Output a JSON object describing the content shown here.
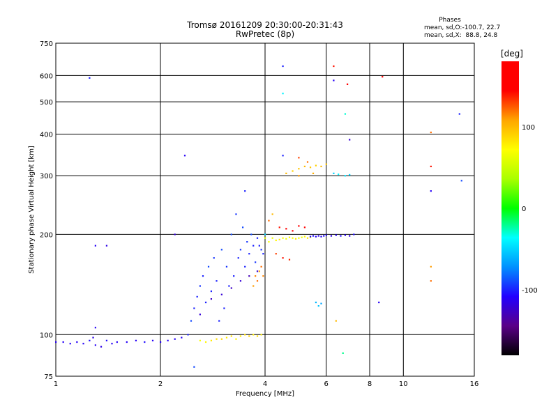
{
  "chart_data": {
    "type": "scatter",
    "title": "Tromsø 20161209 20:30:00-20:31:43",
    "subtitle": "RwPretec (8p)",
    "xlabel": "Frequency [MHz]",
    "ylabel": "Stationary phase Virtual Height [km]",
    "x_scale": "log",
    "y_scale": "log",
    "xlim": [
      1,
      16
    ],
    "ylim": [
      75,
      750
    ],
    "grid": true,
    "x_ticks": [
      1,
      2,
      4,
      6,
      8,
      10,
      16
    ],
    "x_tick_labels": [
      "1",
      "2",
      "4",
      "6",
      "8",
      "10",
      "16"
    ],
    "y_ticks": [
      75,
      100,
      200,
      300,
      400,
      500,
      600,
      750
    ],
    "y_tick_labels": [
      "75",
      "100",
      "200",
      "300",
      "400",
      "500",
      "600",
      "750"
    ],
    "phases_box": {
      "title": "Phases",
      "line1": "mean, sd,O:-100.7, 22.7",
      "line2": "mean, sd,X:  88.8, 24.8"
    },
    "colorbar": {
      "label": "[deg]",
      "range": [
        -180,
        180
      ],
      "ticks": [
        100,
        0,
        -100
      ],
      "tick_labels": [
        "100",
        "0",
        "-100"
      ],
      "colors": [
        "#000000",
        "#5a0088",
        "#2200ff",
        "#0090ff",
        "#00ffff",
        "#00ff00",
        "#aaff00",
        "#ffff00",
        "#ffa500",
        "#ff0000",
        "#ff0000"
      ]
    },
    "series": [
      {
        "points": [
          [
            1.0,
            95,
            -110
          ],
          [
            1.05,
            95,
            -110
          ],
          [
            1.1,
            94,
            -110
          ],
          [
            1.15,
            95,
            -110
          ],
          [
            1.2,
            94,
            -110
          ],
          [
            1.25,
            96,
            -105
          ],
          [
            1.28,
            98,
            -115
          ],
          [
            1.3,
            105,
            -110
          ],
          [
            1.3,
            93,
            -110
          ],
          [
            1.35,
            92,
            -115
          ],
          [
            1.4,
            96,
            -105
          ],
          [
            1.45,
            94,
            -110
          ],
          [
            1.5,
            95,
            -110
          ],
          [
            1.6,
            95,
            -110
          ],
          [
            1.7,
            96,
            -110
          ],
          [
            1.8,
            95,
            -105
          ],
          [
            1.9,
            96,
            -110
          ],
          [
            2.0,
            95,
            -110
          ],
          [
            2.1,
            96,
            -110
          ],
          [
            2.2,
            97,
            -110
          ],
          [
            1.25,
            590,
            -100
          ],
          [
            1.3,
            185,
            -110
          ],
          [
            1.4,
            185,
            -115
          ]
        ]
      },
      {
        "points": [
          [
            2.3,
            98,
            -110
          ],
          [
            2.4,
            100,
            -100
          ],
          [
            2.45,
            110,
            -90
          ],
          [
            2.5,
            120,
            -100
          ],
          [
            2.55,
            130,
            -100
          ],
          [
            2.6,
            140,
            -95
          ],
          [
            2.65,
            150,
            -100
          ],
          [
            2.7,
            125,
            -100
          ],
          [
            2.75,
            160,
            -90
          ],
          [
            2.8,
            135,
            -100
          ],
          [
            2.85,
            170,
            -95
          ],
          [
            2.9,
            145,
            -100
          ],
          [
            2.95,
            110,
            -100
          ],
          [
            3.0,
            180,
            -90
          ],
          [
            3.05,
            120,
            -100
          ],
          [
            3.1,
            160,
            -95
          ],
          [
            3.15,
            140,
            -100
          ],
          [
            3.2,
            200,
            -90
          ],
          [
            3.25,
            150,
            -100
          ],
          [
            3.3,
            230,
            -95
          ],
          [
            3.35,
            170,
            -100
          ],
          [
            3.4,
            180,
            -95
          ],
          [
            3.45,
            210,
            -90
          ],
          [
            3.5,
            160,
            -100
          ],
          [
            3.55,
            190,
            -95
          ],
          [
            3.6,
            175,
            -100
          ],
          [
            3.65,
            200,
            -90
          ],
          [
            3.7,
            185,
            -100
          ],
          [
            3.75,
            165,
            -95
          ],
          [
            3.8,
            195,
            -100
          ],
          [
            3.85,
            185,
            -100
          ],
          [
            3.9,
            180,
            -95
          ],
          [
            3.95,
            175,
            -100
          ],
          [
            2.6,
            115,
            -120
          ],
          [
            2.8,
            128,
            -125
          ],
          [
            3.0,
            132,
            -120
          ],
          [
            3.2,
            138,
            -125
          ],
          [
            3.4,
            145,
            -120
          ],
          [
            3.6,
            150,
            -130
          ],
          [
            3.8,
            155,
            -120
          ],
          [
            2.35,
            345,
            -110
          ],
          [
            2.2,
            200,
            -120
          ],
          [
            2.5,
            80,
            -90
          ],
          [
            3.5,
            270,
            -100
          ]
        ]
      },
      {
        "points": [
          [
            2.6,
            96,
            70
          ],
          [
            2.7,
            95,
            75
          ],
          [
            2.8,
            96,
            80
          ],
          [
            2.9,
            97,
            85
          ],
          [
            3.0,
            97,
            90
          ],
          [
            3.1,
            98,
            80
          ],
          [
            3.2,
            99,
            85
          ],
          [
            3.3,
            97,
            75
          ],
          [
            3.4,
            99,
            80
          ],
          [
            3.5,
            100,
            85
          ],
          [
            3.6,
            99,
            90
          ],
          [
            3.7,
            100,
            80
          ],
          [
            3.8,
            99,
            85
          ],
          [
            3.9,
            100,
            80
          ],
          [
            3.7,
            140,
            110
          ],
          [
            3.75,
            150,
            115
          ],
          [
            3.8,
            145,
            120
          ],
          [
            3.85,
            155,
            110
          ],
          [
            3.9,
            160,
            120
          ],
          [
            3.95,
            150,
            115
          ]
        ]
      },
      {
        "points": [
          [
            4.0,
            195,
            60
          ],
          [
            4.1,
            190,
            70
          ],
          [
            4.2,
            195,
            65
          ],
          [
            4.3,
            192,
            75
          ],
          [
            4.4,
            193,
            80
          ],
          [
            4.5,
            195,
            70
          ],
          [
            4.6,
            194,
            65
          ],
          [
            4.7,
            196,
            75
          ],
          [
            4.8,
            195,
            70
          ],
          [
            4.9,
            194,
            80
          ],
          [
            5.0,
            195,
            70
          ],
          [
            5.1,
            196,
            65
          ],
          [
            5.2,
            197,
            75
          ],
          [
            5.3,
            195,
            80
          ],
          [
            5.4,
            196,
            70
          ],
          [
            4.4,
            210,
            140
          ],
          [
            4.6,
            208,
            150
          ],
          [
            4.8,
            205,
            145
          ],
          [
            5.0,
            212,
            155
          ],
          [
            5.2,
            210,
            150
          ],
          [
            4.3,
            175,
            130
          ],
          [
            4.5,
            170,
            140
          ],
          [
            4.7,
            168,
            135
          ],
          [
            4.1,
            220,
            120
          ],
          [
            4.2,
            230,
            100
          ],
          [
            4.0,
            200,
            -50
          ]
        ]
      },
      {
        "points": [
          [
            5.4,
            197,
            -110
          ],
          [
            5.5,
            198,
            -105
          ],
          [
            5.6,
            197,
            -110
          ],
          [
            5.7,
            198,
            -115
          ],
          [
            5.8,
            197,
            -110
          ],
          [
            5.9,
            198,
            -105
          ],
          [
            6.0,
            199,
            -110
          ],
          [
            6.2,
            198,
            -115
          ],
          [
            6.4,
            199,
            -110
          ],
          [
            6.6,
            198,
            -105
          ],
          [
            6.8,
            199,
            -110
          ],
          [
            7.0,
            198,
            -115
          ],
          [
            5.6,
            125,
            -60
          ],
          [
            5.7,
            122,
            -55
          ],
          [
            5.8,
            124,
            -65
          ],
          [
            6.3,
            305,
            -50
          ],
          [
            6.5,
            303,
            -40
          ],
          [
            6.8,
            300,
            -45
          ],
          [
            7.0,
            302,
            -50
          ],
          [
            4.5,
            640,
            -100
          ],
          [
            4.5,
            530,
            -40
          ],
          [
            6.3,
            580,
            -110
          ],
          [
            6.3,
            640,
            140
          ],
          [
            6.9,
            565,
            160
          ],
          [
            8.7,
            595,
            150
          ],
          [
            6.8,
            460,
            -30
          ],
          [
            7.0,
            385,
            -120
          ],
          [
            7.2,
            200,
            -105
          ],
          [
            6.4,
            110,
            100
          ],
          [
            6.7,
            88,
            -20
          ],
          [
            8.5,
            125,
            -110
          ],
          [
            14.5,
            460,
            -100
          ],
          [
            14.7,
            290,
            -90
          ],
          [
            12.0,
            405,
            120
          ],
          [
            12.0,
            320,
            140
          ],
          [
            12.0,
            270,
            -110
          ],
          [
            12.0,
            160,
            110
          ],
          [
            12.0,
            145,
            120
          ],
          [
            4.5,
            345,
            -100
          ],
          [
            5.0,
            340,
            130
          ],
          [
            5.3,
            330,
            120
          ]
        ]
      },
      {
        "points": [
          [
            4.6,
            305,
            100
          ],
          [
            4.8,
            310,
            90
          ],
          [
            5.0,
            315,
            95
          ],
          [
            5.2,
            320,
            100
          ],
          [
            5.4,
            318,
            95
          ],
          [
            5.6,
            322,
            90
          ],
          [
            5.8,
            320,
            100
          ],
          [
            6.0,
            325,
            95
          ],
          [
            5.0,
            300,
            110
          ],
          [
            5.5,
            305,
            105
          ]
        ]
      }
    ]
  }
}
